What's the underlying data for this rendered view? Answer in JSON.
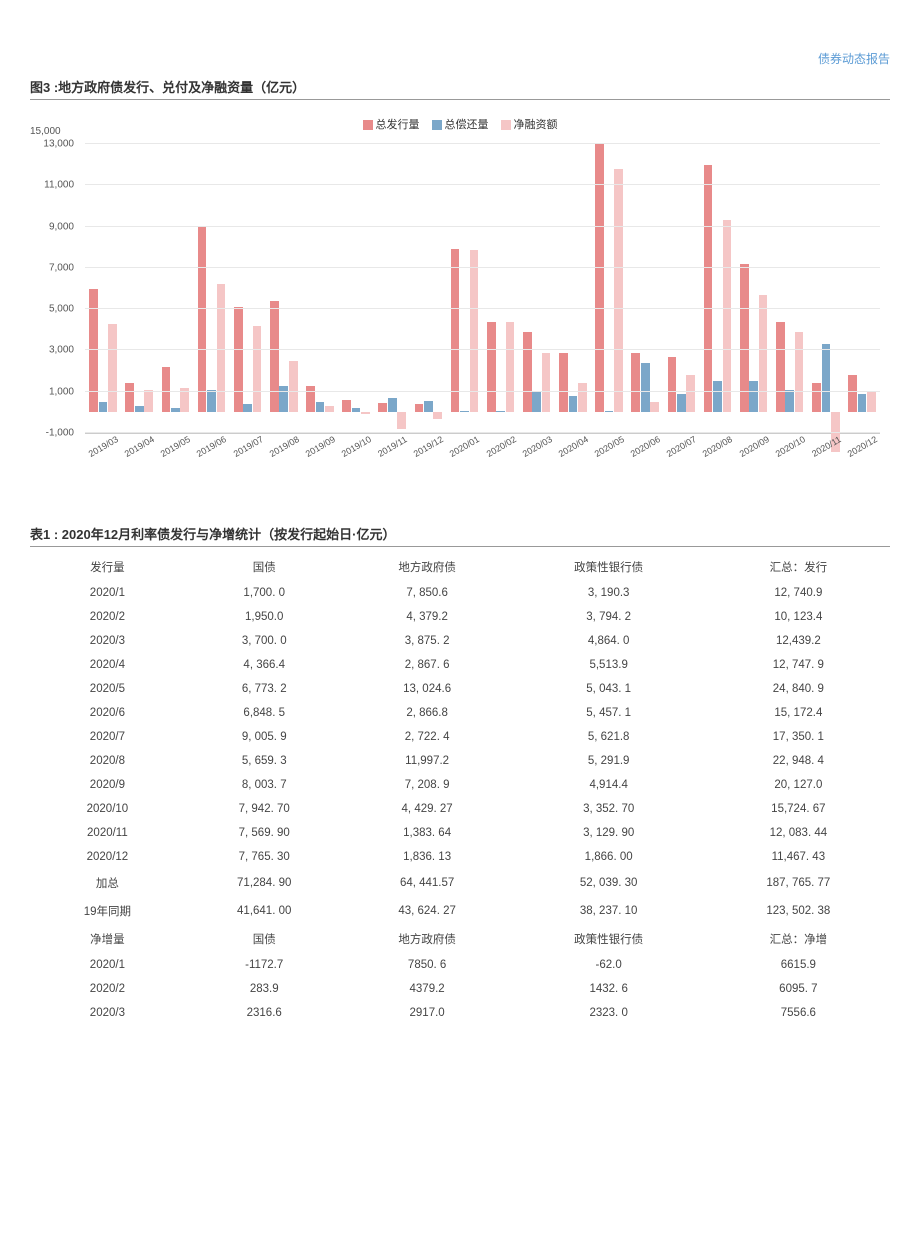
{
  "header": {
    "tag": "债券动态报告",
    "tag_color": "#5b9bd5"
  },
  "chart": {
    "title": "图3 :地方政府债发行、兑付及净融资量（亿元）",
    "type": "bar",
    "legend": [
      {
        "label": "总发行量",
        "color": "#e88a8a"
      },
      {
        "label": "总偿还量",
        "color": "#7ba7c9"
      },
      {
        "label": "净融资额",
        "color": "#f5c6c6"
      }
    ],
    "ymin": -1000,
    "ymax": 13000,
    "ytick_step": 2000,
    "y_top_label": "15,000",
    "grid_color": "#e8e8e8",
    "background_color": "#ffffff",
    "categories": [
      "2019/03",
      "2019/04",
      "2019/05",
      "2019/06",
      "2019/07",
      "2019/08",
      "2019/09",
      "2019/10",
      "2019/11",
      "2019/12",
      "2020/01",
      "2020/02",
      "2020/03",
      "2020/04",
      "2020/05",
      "2020/06",
      "2020/07",
      "2020/08",
      "2020/09",
      "2020/10",
      "2020/11",
      "2020/12"
    ],
    "series": [
      {
        "name": "总发行量",
        "color": "#e88a8a",
        "values": [
          6000,
          1400,
          2200,
          9000,
          5100,
          5400,
          1300,
          600,
          450,
          400,
          7900,
          4400,
          3900,
          2900,
          13000,
          2900,
          2700,
          12000,
          7200,
          4400,
          1400,
          1800
        ]
      },
      {
        "name": "总偿还量",
        "color": "#7ba7c9",
        "values": [
          500,
          300,
          200,
          1100,
          400,
          1300,
          500,
          200,
          700,
          550,
          50,
          50,
          1000,
          800,
          50,
          2400,
          900,
          1500,
          1500,
          1100,
          3300,
          900
        ]
      },
      {
        "name": "净融资额",
        "color": "#f5c6c6",
        "values": [
          4300,
          1100,
          1200,
          6200,
          4200,
          2500,
          300,
          -100,
          -800,
          -300,
          7850,
          4379,
          2900,
          1400,
          11800,
          500,
          1800,
          9300,
          5700,
          3900,
          -1900,
          1000
        ]
      }
    ],
    "bar_width_pct": 24,
    "label_fontsize": 10
  },
  "table": {
    "title": "表1 : 2020年12月利率债发行与净增统计（按发行起始日·亿元）",
    "columns": [
      "发行量",
      "国债",
      "地方政府债",
      "政策性银行债",
      "汇总：发行"
    ],
    "rows": [
      [
        "2020/1",
        "1,700. 0",
        "7, 850.6",
        "3, 190.3",
        "12, 740.9"
      ],
      [
        "2020/2",
        "1,950.0",
        "4, 379.2",
        "3, 794. 2",
        "10, 123.4"
      ],
      [
        "2020/3",
        "3, 700. 0",
        "3, 875. 2",
        "4,864. 0",
        "12,439.2"
      ],
      [
        "2020/4",
        "4, 366.4",
        "2, 867. 6",
        "5,513.9",
        "12, 747. 9"
      ],
      [
        "2020/5",
        "6, 773. 2",
        "13, 024.6",
        "5, 043. 1",
        "24, 840. 9"
      ],
      [
        "2020/6",
        "6,848. 5",
        "2, 866.8",
        "5, 457. 1",
        "15, 172.4"
      ],
      [
        "2020/7",
        "9, 005. 9",
        "2, 722. 4",
        "5, 621.8",
        "17, 350. 1"
      ],
      [
        "2020/8",
        "5, 659. 3",
        "11,997.2",
        "5, 291.9",
        "22, 948. 4"
      ],
      [
        "2020/9",
        "8, 003. 7",
        "7, 208. 9",
        "4,914.4",
        "20, 127.0"
      ],
      [
        "2020/10",
        "7, 942. 70",
        "4, 429. 27",
        "3, 352. 70",
        "15,724. 67"
      ],
      [
        "2020/11",
        "7, 569. 90",
        "1,383. 64",
        "3, 129. 90",
        "12, 083. 44"
      ],
      [
        "2020/12",
        "7, 765. 30",
        "1,836. 13",
        "1,866. 00",
        "11,467. 43"
      ],
      [
        "加总",
        "71,284. 90",
        "64, 441.57",
        "52, 039. 30",
        "187, 765. 77"
      ],
      [
        "19年同期",
        "41,641. 00",
        "43, 624. 27",
        "38, 237. 10",
        "123, 502. 38"
      ]
    ],
    "columns2": [
      "净增量",
      "国债",
      "地方政府债",
      "政策性银行债",
      "汇总：净增"
    ],
    "rows2": [
      [
        "2020/1",
        "-1172.7",
        "7850. 6",
        "-62.0",
        "6615.9"
      ],
      [
        "2020/2",
        "283.9",
        "4379.2",
        "1432. 6",
        "6095. 7"
      ],
      [
        "2020/3",
        "2316.6",
        "2917.0",
        "2323. 0",
        "7556.6"
      ]
    ]
  }
}
